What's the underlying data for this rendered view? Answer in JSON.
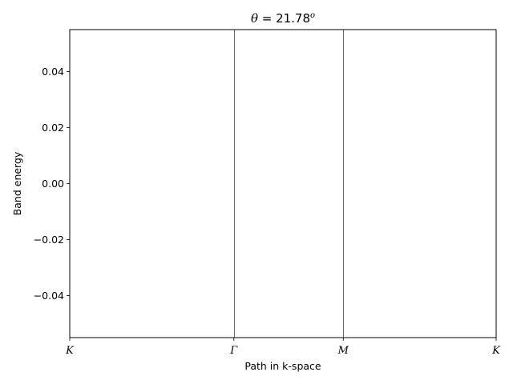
{
  "chart_data": {
    "type": "line",
    "title": {
      "symbol": "θ",
      "equals": " = ",
      "value": "21.78",
      "superscript": "o"
    },
    "xlabel": "Path in k-space",
    "ylabel": "Band energy",
    "ylim": [
      -0.055,
      0.055
    ],
    "y_ticks": [
      -0.04,
      -0.02,
      0.0,
      0.02,
      0.04
    ],
    "y_tick_labels": [
      "−0.04",
      "−0.02",
      "0.00",
      "0.02",
      "0.04"
    ],
    "x_ticks": [
      0,
      0.3849,
      0.6415,
      1.0
    ],
    "x_tick_labels": [
      "K",
      "Γ",
      "M",
      "K"
    ],
    "xlim": [
      0,
      1.0
    ],
    "vertical_lines": [
      0.3849,
      0.6415
    ],
    "series": [],
    "grid": false
  }
}
